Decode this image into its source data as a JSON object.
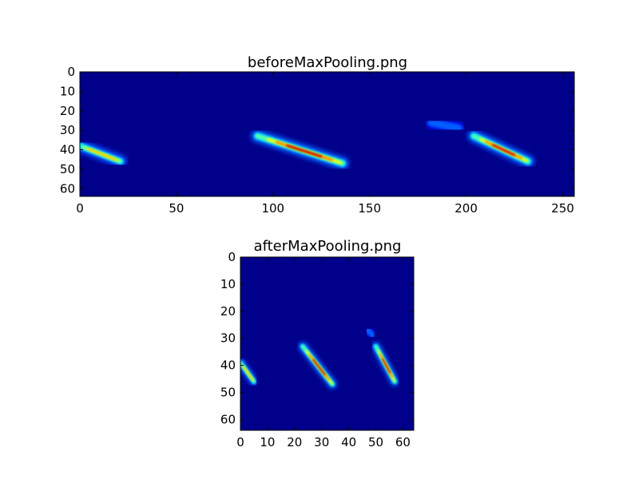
{
  "chart_data": [
    {
      "type": "heatmap",
      "title": "beforeMaxPooling.png",
      "xlim": [
        0,
        256
      ],
      "ylim": [
        64,
        0
      ],
      "xticks": [
        "0",
        "50",
        "100",
        "150",
        "200",
        "250"
      ],
      "yticks": [
        "0",
        "10",
        "20",
        "30",
        "40",
        "50",
        "60"
      ],
      "colormap": "jet",
      "background_color": "#00008a",
      "streaks": [
        {
          "from": [
            0,
            38
          ],
          "to": [
            21,
            46
          ],
          "peak": 0.8
        },
        {
          "from": [
            92,
            33
          ],
          "to": [
            136,
            47
          ],
          "peak": 1.0
        },
        {
          "from": [
            182,
            26
          ],
          "to": [
            196,
            29
          ],
          "peak": 0.35
        },
        {
          "from": [
            204,
            33
          ],
          "to": [
            232,
            46
          ],
          "peak": 0.95
        }
      ]
    },
    {
      "type": "heatmap",
      "title": "afterMaxPooling.png",
      "xlim": [
        0,
        64
      ],
      "ylim": [
        64,
        0
      ],
      "xticks": [
        "0",
        "10",
        "20",
        "30",
        "40",
        "50",
        "60"
      ],
      "yticks": [
        "0",
        "10",
        "20",
        "30",
        "40",
        "50",
        "60"
      ],
      "colormap": "jet",
      "background_color": "#00008a",
      "streaks": [
        {
          "from": [
            0,
            39
          ],
          "to": [
            5,
            46
          ],
          "peak": 0.8
        },
        {
          "from": [
            23,
            33
          ],
          "to": [
            34,
            47
          ],
          "peak": 1.0
        },
        {
          "from": [
            47,
            27
          ],
          "to": [
            49,
            29
          ],
          "peak": 0.35
        },
        {
          "from": [
            50,
            33
          ],
          "to": [
            57,
            46
          ],
          "peak": 0.95
        }
      ]
    }
  ]
}
